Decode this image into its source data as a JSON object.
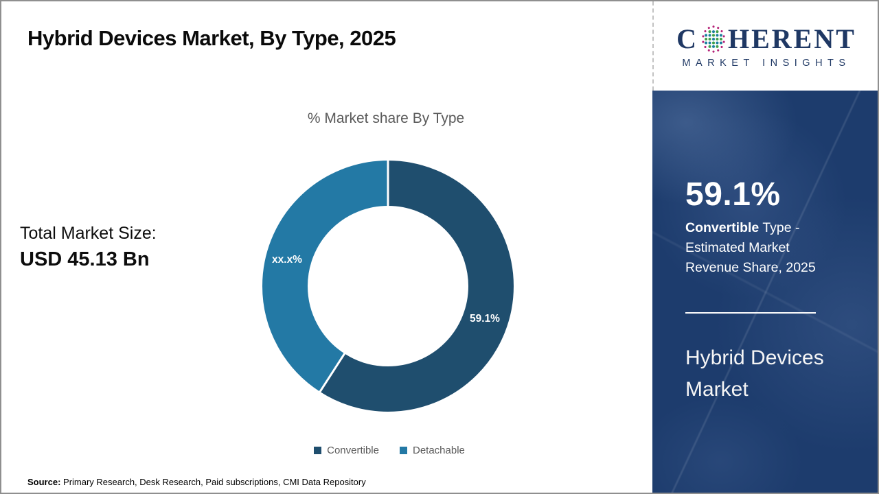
{
  "header": {
    "title": "Hybrid Devices Market, By Type, 2025"
  },
  "logo": {
    "word_start": "C",
    "word_end": "HERENT",
    "subtitle": "MARKET INSIGHTS",
    "brand_color": "#1f3864"
  },
  "left_panel": {
    "total_label": "Total Market Size:",
    "total_value": "USD 45.13 Bn"
  },
  "chart_data": {
    "type": "pie",
    "subtype": "donut",
    "title": "% Market share By Type",
    "categories": [
      "Convertible",
      "Detachable"
    ],
    "values": [
      59.1,
      40.9
    ],
    "slice_labels": [
      "59.1%",
      "xx.x%"
    ],
    "colors": [
      "#1f4e6e",
      "#2379a5"
    ],
    "donut_hole_ratio": 0.64,
    "legend_position": "bottom",
    "start_angle_deg": 0,
    "direction": "clockwise"
  },
  "sidebar": {
    "stat_value": "59.1%",
    "desc_bold": "Convertible",
    "desc_line1_rest": " Type -",
    "desc_line2": "Estimated Market",
    "desc_line3": "Revenue Share, 2025",
    "market_name_line1": "Hybrid Devices",
    "market_name_line2": "Market",
    "bg_color": "#1d3c6d"
  },
  "footer": {
    "source_label": "Source:",
    "source_text": " Primary Research, Desk Research, Paid subscriptions, CMI Data Repository"
  }
}
